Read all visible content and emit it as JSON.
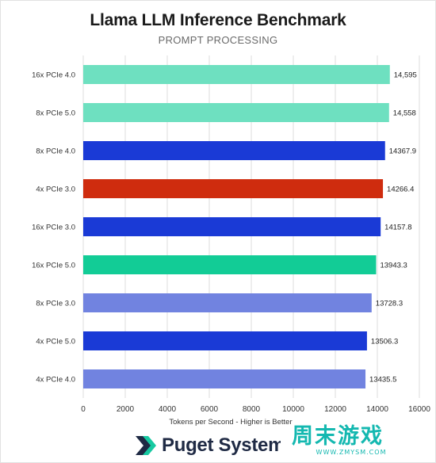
{
  "chart_data": {
    "type": "bar",
    "orientation": "horizontal",
    "title": "Llama LLM Inference Benchmark",
    "subtitle": "PROMPT PROCESSING",
    "xlabel": "Tokens per Second - Higher is Better",
    "xlim": [
      0,
      16000
    ],
    "xticks": [
      0,
      2000,
      4000,
      6000,
      8000,
      10000,
      12000,
      14000,
      16000
    ],
    "grid": true,
    "categories": [
      "16x PCIe 4.0",
      "8x PCIe 5.0",
      "8x PCIe 4.0",
      "4x PCIe 3.0",
      "16x PCIe 3.0",
      "16x PCIe 5.0",
      "8x PCIe 3.0",
      "4x PCIe 5.0",
      "4x PCIe 4.0"
    ],
    "values": [
      14595,
      14558,
      14367.9,
      14266.4,
      14157.8,
      13943.3,
      13728.3,
      13506.3,
      13435.5
    ],
    "value_labels": [
      "14,595",
      "14,558",
      "14367.9",
      "14266.4",
      "14157.8",
      "13943.3",
      "13728.3",
      "13506.3",
      "13435.5"
    ],
    "colors": [
      "#6ee0c0",
      "#6ee0c0",
      "#1a3ad6",
      "#cf2c0e",
      "#1a3ad6",
      "#12cc96",
      "#7183e0",
      "#1a3ad6",
      "#7183e0"
    ]
  },
  "branding": {
    "logo_text": "Puget Systems",
    "logo_icon": "puget-chevron-icon",
    "watermark_text": "周末游戏",
    "watermark_url": "WWW.ZMYSM.COM"
  }
}
